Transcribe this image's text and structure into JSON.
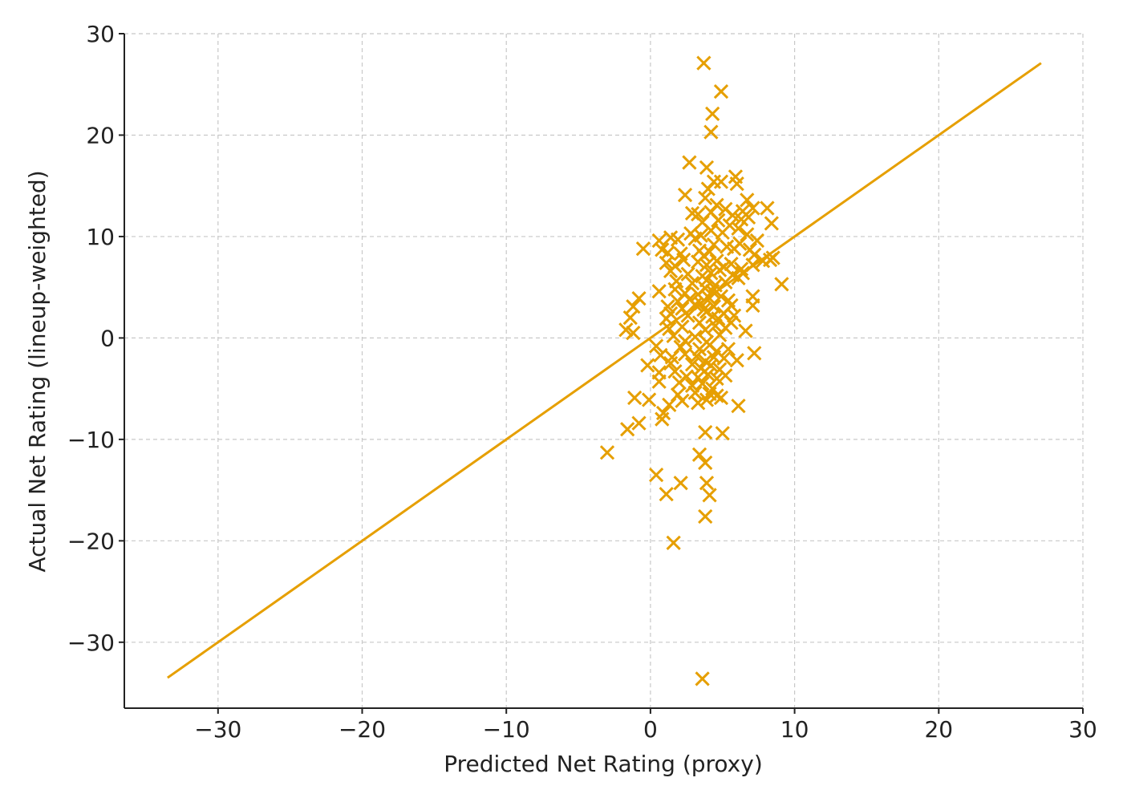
{
  "chart_data": {
    "type": "scatter",
    "title": "",
    "xlabel": "Predicted Net Rating (proxy)",
    "ylabel": "Actual Net Rating (lineup-weighted)",
    "xlim": [
      -36.5,
      30
    ],
    "ylim": [
      -36.5,
      30
    ],
    "xticks": [
      -30,
      -20,
      -10,
      0,
      10,
      20,
      30
    ],
    "yticks": [
      -30,
      -20,
      -10,
      0,
      10,
      20,
      30
    ],
    "xtick_labels": [
      "−30",
      "−20",
      "−10",
      "0",
      "10",
      "20",
      "30"
    ],
    "ytick_labels": [
      "−30",
      "−20",
      "−10",
      "0",
      "10",
      "20",
      "30"
    ],
    "grid": true,
    "color": "#E69F00",
    "marker": "x",
    "reference_line": {
      "x": [
        -33.5,
        27.1
      ],
      "y": [
        -33.5,
        27.1
      ]
    },
    "points": [
      [
        3.7,
        27.1
      ],
      [
        4.9,
        24.3
      ],
      [
        4.3,
        22.1
      ],
      [
        4.2,
        20.3
      ],
      [
        2.7,
        17.3
      ],
      [
        3.9,
        16.8
      ],
      [
        5.9,
        15.9
      ],
      [
        4.4,
        15.4
      ],
      [
        4.0,
        14.7
      ],
      [
        6.0,
        15.2
      ],
      [
        4.9,
        15.4
      ],
      [
        2.4,
        14.1
      ],
      [
        3.8,
        13.8
      ],
      [
        6.7,
        13.6
      ],
      [
        4.6,
        13.1
      ],
      [
        5.2,
        12.7
      ],
      [
        6.4,
        12.5
      ],
      [
        7.1,
        12.8
      ],
      [
        8.1,
        12.8
      ],
      [
        2.9,
        12.3
      ],
      [
        3.3,
        12.2
      ],
      [
        4.2,
        12.4
      ],
      [
        5.7,
        12.1
      ],
      [
        6.3,
        11.7
      ],
      [
        6.8,
        11.9
      ],
      [
        3.6,
        11.4
      ],
      [
        4.7,
        11.6
      ],
      [
        8.4,
        11.3
      ],
      [
        5.5,
        11.1
      ],
      [
        6.1,
        10.8
      ],
      [
        0.6,
        9.6
      ],
      [
        1.4,
        9.9
      ],
      [
        1.9,
        9.7
      ],
      [
        2.8,
        10.3
      ],
      [
        3.1,
        9.8
      ],
      [
        3.5,
        10.1
      ],
      [
        4.2,
        10.6
      ],
      [
        5.0,
        10.4
      ],
      [
        6.7,
        10.2
      ],
      [
        7.4,
        9.6
      ],
      [
        -0.5,
        8.8
      ],
      [
        0.8,
        8.7
      ],
      [
        1.2,
        8.4
      ],
      [
        2.1,
        8.3
      ],
      [
        3.4,
        8.6
      ],
      [
        3.7,
        8.1
      ],
      [
        4.1,
        8.5
      ],
      [
        4.4,
        9.2
      ],
      [
        5.3,
        9.0
      ],
      [
        5.8,
        8.8
      ],
      [
        6.2,
        9.3
      ],
      [
        6.9,
        8.7
      ],
      [
        7.2,
        8.2
      ],
      [
        7.8,
        7.6
      ],
      [
        8.3,
        7.7
      ],
      [
        8.5,
        7.9
      ],
      [
        1.1,
        7.4
      ],
      [
        1.7,
        7.1
      ],
      [
        2.3,
        7.7
      ],
      [
        3.3,
        7.5
      ],
      [
        3.9,
        7.2
      ],
      [
        4.6,
        7.6
      ],
      [
        5.1,
        7.0
      ],
      [
        5.6,
        7.3
      ],
      [
        6.3,
        6.8
      ],
      [
        7.1,
        7.2
      ],
      [
        1.4,
        6.6
      ],
      [
        2.6,
        6.3
      ],
      [
        3.6,
        6.1
      ],
      [
        4.2,
        6.4
      ],
      [
        4.8,
        6.7
      ],
      [
        5.7,
        6.2
      ],
      [
        6.4,
        6.4
      ],
      [
        1.8,
        5.6
      ],
      [
        2.9,
        5.4
      ],
      [
        3.9,
        5.7
      ],
      [
        4.5,
        5.2
      ],
      [
        5.2,
        5.5
      ],
      [
        6.1,
        5.9
      ],
      [
        9.1,
        5.3
      ],
      [
        0.6,
        4.6
      ],
      [
        1.7,
        4.8
      ],
      [
        2.4,
        4.4
      ],
      [
        3.3,
        4.3
      ],
      [
        3.8,
        4.9
      ],
      [
        4.3,
        4.6
      ],
      [
        4.9,
        4.1
      ],
      [
        -0.8,
        3.9
      ],
      [
        1.9,
        3.6
      ],
      [
        2.7,
        3.8
      ],
      [
        3.5,
        3.4
      ],
      [
        4.1,
        3.9
      ],
      [
        5.4,
        3.7
      ],
      [
        7.1,
        4.1
      ],
      [
        -1.2,
        3.1
      ],
      [
        1.2,
        3.1
      ],
      [
        2.2,
        2.9
      ],
      [
        3.1,
        3.3
      ],
      [
        3.7,
        2.8
      ],
      [
        4.4,
        3.1
      ],
      [
        5.6,
        3.2
      ],
      [
        7.1,
        3.2
      ],
      [
        -1.4,
        2.0
      ],
      [
        1.4,
        2.4
      ],
      [
        2.6,
        2.2
      ],
      [
        3.9,
        2.6
      ],
      [
        4.3,
        2.1
      ],
      [
        5.1,
        2.4
      ],
      [
        5.8,
        2.2
      ],
      [
        1.1,
        1.9
      ],
      [
        3.4,
        1.5
      ],
      [
        4.7,
        1.9
      ],
      [
        5.6,
        1.5
      ],
      [
        -1.7,
        0.8
      ],
      [
        -1.2,
        0.5
      ],
      [
        1.3,
        0.9
      ],
      [
        2.2,
        1.1
      ],
      [
        3.8,
        0.8
      ],
      [
        4.5,
        1.2
      ],
      [
        5.2,
        1.0
      ],
      [
        6.6,
        0.7
      ],
      [
        1.6,
        0.2
      ],
      [
        2.4,
        -0.3
      ],
      [
        3.1,
        0.1
      ],
      [
        3.9,
        -0.4
      ],
      [
        4.8,
        0.3
      ],
      [
        0.4,
        -0.8
      ],
      [
        2.1,
        -0.9
      ],
      [
        3.4,
        -1.1
      ],
      [
        4.1,
        -0.7
      ],
      [
        4.6,
        -1.3
      ],
      [
        5.4,
        -1.1
      ],
      [
        7.2,
        -1.5
      ],
      [
        0.7,
        -1.7
      ],
      [
        1.5,
        -1.9
      ],
      [
        2.4,
        -1.6
      ],
      [
        3.2,
        -1.8
      ],
      [
        3.8,
        -2.3
      ],
      [
        4.4,
        -1.9
      ],
      [
        5.1,
        -2.0
      ],
      [
        6.0,
        -2.2
      ],
      [
        -0.2,
        -2.7
      ],
      [
        1.4,
        -2.5
      ],
      [
        2.9,
        -2.6
      ],
      [
        3.5,
        -3.0
      ],
      [
        4.2,
        -2.7
      ],
      [
        4.8,
        -3.1
      ],
      [
        0.6,
        -3.4
      ],
      [
        1.7,
        -3.3
      ],
      [
        2.5,
        -3.8
      ],
      [
        3.3,
        -3.9
      ],
      [
        4.0,
        -3.6
      ],
      [
        4.6,
        -4.0
      ],
      [
        5.2,
        -3.7
      ],
      [
        0.6,
        -4.3
      ],
      [
        2.0,
        -4.4
      ],
      [
        2.9,
        -4.7
      ],
      [
        3.6,
        -4.5
      ],
      [
        4.3,
        -5.0
      ],
      [
        1.9,
        -5.6
      ],
      [
        3.1,
        -5.4
      ],
      [
        4.1,
        -5.5
      ],
      [
        4.9,
        -5.9
      ],
      [
        -1.1,
        -5.9
      ],
      [
        -0.1,
        -6.1
      ],
      [
        1.3,
        -6.6
      ],
      [
        2.2,
        -6.2
      ],
      [
        3.3,
        -6.4
      ],
      [
        3.9,
        -6.1
      ],
      [
        4.6,
        -5.7
      ],
      [
        6.1,
        -6.7
      ],
      [
        0.9,
        -7.4
      ],
      [
        0.8,
        -8.0
      ],
      [
        -0.8,
        -8.4
      ],
      [
        -1.6,
        -9.0
      ],
      [
        3.8,
        -9.3
      ],
      [
        5.0,
        -9.4
      ],
      [
        -3.0,
        -11.3
      ],
      [
        3.4,
        -11.5
      ],
      [
        3.8,
        -12.3
      ],
      [
        0.4,
        -13.5
      ],
      [
        2.1,
        -14.3
      ],
      [
        3.9,
        -14.3
      ],
      [
        1.1,
        -15.4
      ],
      [
        4.1,
        -15.5
      ],
      [
        3.8,
        -17.6
      ],
      [
        1.6,
        -20.2
      ],
      [
        3.6,
        -33.6
      ]
    ]
  }
}
